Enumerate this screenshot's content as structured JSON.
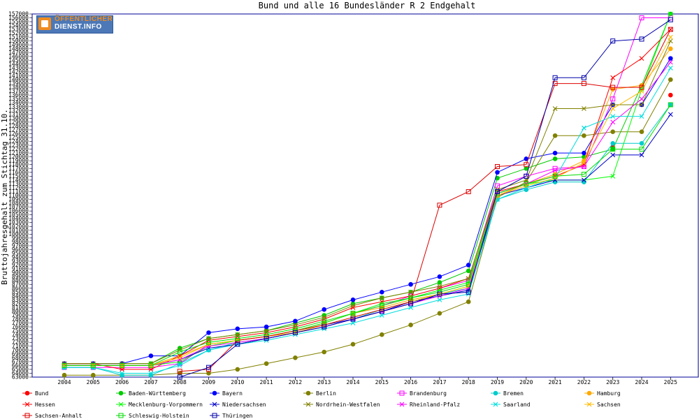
{
  "logo": {
    "line1": "ÖFFENTLICHER",
    "line2": "DIENST.INFO"
  },
  "chart_data": {
    "type": "line",
    "title": "Bund und alle 16 Bundesländer R 2 Endgehalt",
    "xlabel": "",
    "ylabel": "Bruttojahresgehalt zum Stichtag 31.10.",
    "x": [
      2004,
      2005,
      2006,
      2007,
      2008,
      2009,
      2010,
      2011,
      2012,
      2013,
      2014,
      2015,
      2016,
      2017,
      2018,
      2019,
      2020,
      2021,
      2022,
      2023,
      2024,
      2025
    ],
    "ylim": [
      63000,
      157000
    ],
    "ytick_step": 1000,
    "grid": false,
    "legend_position": "bottom",
    "series": [
      {
        "name": "Bund",
        "color": "#ff0000",
        "marker": "circle",
        "values": [
          null,
          null,
          null,
          null,
          null,
          null,
          null,
          null,
          null,
          null,
          null,
          null,
          null,
          null,
          null,
          null,
          null,
          null,
          null,
          122500,
          null,
          136000
        ]
      },
      {
        "name": "Baden-Württemberg",
        "color": "#00cc00",
        "marker": "circle",
        "values": [
          66500,
          66500,
          66500,
          66500,
          70500,
          73000,
          74000,
          75000,
          77000,
          79000,
          82000,
          83500,
          85000,
          87500,
          90500,
          114500,
          117000,
          119500,
          120000,
          122000,
          138500,
          157000
        ]
      },
      {
        "name": "Bayern",
        "color": "#0000ff",
        "marker": "circle",
        "values": [
          66500,
          66500,
          66500,
          68500,
          68500,
          74500,
          75500,
          76000,
          77500,
          80500,
          83000,
          85000,
          87000,
          89000,
          92000,
          116000,
          119500,
          121000,
          121000,
          133500,
          133500,
          145500
        ]
      },
      {
        "name": "Berlin",
        "color": "#808000",
        "marker": "circle",
        "values": [
          63500,
          63500,
          63500,
          63500,
          64000,
          64000,
          65000,
          66500,
          68000,
          69500,
          71500,
          74000,
          76500,
          79500,
          82500,
          109500,
          113500,
          125500,
          125500,
          126500,
          126500,
          140000
        ]
      },
      {
        "name": "Brandenburg",
        "color": "#ff00ff",
        "marker": "square",
        "values": [
          65500,
          65500,
          65500,
          65500,
          66500,
          71500,
          72500,
          73500,
          75000,
          77000,
          79500,
          81500,
          84000,
          86000,
          88000,
          112500,
          115000,
          117000,
          117500,
          135000,
          156000,
          156000
        ]
      },
      {
        "name": "Bremen",
        "color": "#00cccc",
        "marker": "circle",
        "values": [
          65500,
          65500,
          63500,
          63500,
          66500,
          70000,
          72000,
          73000,
          74500,
          76000,
          78000,
          80500,
          82500,
          84500,
          86000,
          109000,
          111500,
          113500,
          113500,
          123500,
          123500,
          133500
        ]
      },
      {
        "name": "Hamburg",
        "color": "#ffaa00",
        "marker": "circle",
        "values": [
          66000,
          66000,
          66000,
          66000,
          68500,
          71500,
          72500,
          73500,
          75000,
          77000,
          79500,
          81000,
          83000,
          84500,
          86500,
          110000,
          113000,
          115500,
          119000,
          137500,
          138500,
          148000
        ]
      },
      {
        "name": "Hessen",
        "color": "#ff0000",
        "marker": "x",
        "values": [
          66500,
          66500,
          65000,
          65000,
          68500,
          72500,
          73500,
          74500,
          76000,
          78000,
          81000,
          82500,
          84000,
          86000,
          88500,
          111000,
          113000,
          115000,
          118000,
          140500,
          145500,
          153000
        ]
      },
      {
        "name": "Mecklenburg-Vorpommern",
        "color": "#00ff00",
        "marker": "x",
        "values": [
          66000,
          66000,
          66000,
          66000,
          67000,
          71000,
          72500,
          73500,
          75000,
          77000,
          79500,
          82000,
          83500,
          85500,
          87500,
          110500,
          113000,
          114000,
          114000,
          115000,
          137500,
          157000
        ]
      },
      {
        "name": "Niedersachsen",
        "color": "#0000cc",
        "marker": "x",
        "values": [
          66000,
          66000,
          66000,
          66000,
          67500,
          70500,
          71500,
          73000,
          74500,
          76500,
          78000,
          80000,
          82500,
          84000,
          85500,
          110000,
          112000,
          114000,
          114000,
          120500,
          120500,
          131000
        ]
      },
      {
        "name": "Nordrhein-Westfalen",
        "color": "#808000",
        "marker": "x",
        "values": [
          66500,
          66500,
          66500,
          66500,
          70000,
          73000,
          74000,
          75000,
          76500,
          78500,
          81500,
          83500,
          85000,
          86500,
          88500,
          111500,
          114000,
          132500,
          132500,
          133500,
          133500,
          150000
        ]
      },
      {
        "name": "Rheinland-Pfalz",
        "color": "#ff00ff",
        "marker": "x",
        "values": [
          66000,
          66000,
          66000,
          66000,
          67500,
          71000,
          72000,
          73000,
          74500,
          76000,
          78000,
          80000,
          82000,
          84000,
          86000,
          110500,
          113000,
          116500,
          117500,
          129000,
          135000,
          144500
        ]
      },
      {
        "name": "Saarland",
        "color": "#00dddd",
        "marker": "x",
        "values": [
          65500,
          65500,
          64000,
          64000,
          66000,
          70000,
          71500,
          72500,
          74000,
          75500,
          77000,
          79000,
          81000,
          83000,
          84500,
          109000,
          112000,
          114500,
          127500,
          130500,
          130500,
          143000
        ]
      },
      {
        "name": "Sachsen",
        "color": "#ffbb00",
        "marker": "x",
        "values": [
          66000,
          66000,
          66000,
          66000,
          68000,
          71500,
          72500,
          73500,
          74500,
          76500,
          78500,
          80500,
          82500,
          84500,
          86500,
          110000,
          112500,
          114500,
          118500,
          132500,
          137000,
          151000
        ]
      },
      {
        "name": "Sachsen-Anhalt",
        "color": "#dd0000",
        "marker": "square",
        "values": [
          null,
          null,
          null,
          null,
          64500,
          65000,
          72500,
          73500,
          75000,
          76500,
          78500,
          80500,
          82500,
          107500,
          111000,
          117500,
          118000,
          139000,
          139000,
          138000,
          138000,
          153000
        ]
      },
      {
        "name": "Schleswig-Holstein",
        "color": "#00dd00",
        "marker": "square",
        "values": [
          66000,
          66000,
          66000,
          66000,
          69500,
          72000,
          73000,
          74000,
          75500,
          77500,
          79500,
          81500,
          83500,
          85000,
          87000,
          110500,
          113000,
          115000,
          115500,
          122000,
          122000,
          133500
        ]
      },
      {
        "name": "Thüringen",
        "color": "#0000aa",
        "marker": "square",
        "values": [
          null,
          null,
          null,
          null,
          63000,
          65500,
          71500,
          73000,
          74500,
          76000,
          78000,
          80000,
          82000,
          84500,
          85000,
          111000,
          115000,
          140500,
          140500,
          150000,
          150500,
          155500
        ]
      }
    ]
  }
}
